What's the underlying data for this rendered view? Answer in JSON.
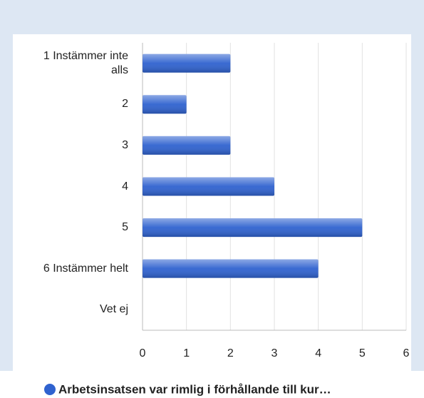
{
  "chart_data": {
    "type": "bar",
    "orientation": "horizontal",
    "categories": [
      "1 Instämmer inte alls",
      "2",
      "3",
      "4",
      "5",
      "6 Instämmer helt",
      "Vet ej"
    ],
    "series": [
      {
        "name": "Arbetsinsatsen var rimlig i förhållande till kur…",
        "color": "#2f62cf",
        "values": [
          2,
          1,
          2,
          3,
          5,
          4,
          0
        ]
      }
    ],
    "xlim": [
      0,
      6
    ],
    "xticks": [
      0,
      1,
      2,
      3,
      4,
      5,
      6
    ],
    "grid": true,
    "legend": "bottom"
  }
}
